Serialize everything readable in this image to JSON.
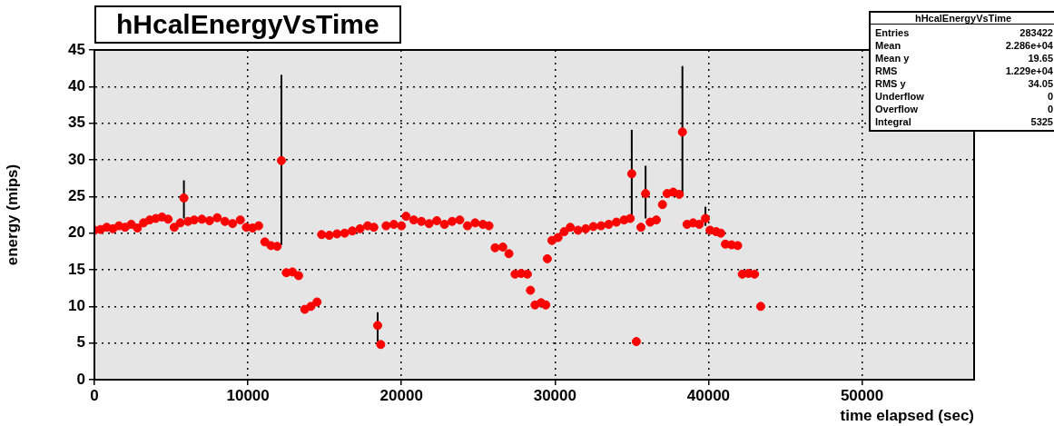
{
  "chart_data": {
    "type": "scatter",
    "title": "hHcalEnergyVsTime",
    "xlabel": "time elapsed (sec)",
    "ylabel": "energy (mips)",
    "annotations": [
      "Entries 283422",
      "Mean 2.286e+04",
      "Mean y 19.65",
      "RMS 1.229e+04",
      "RMS y 34.05",
      "Underflow 0",
      "Overflow 0",
      "Integral 5325"
    ],
    "xlim": [
      0,
      57300
    ],
    "xticks": [
      0,
      10000,
      20000,
      30000,
      40000,
      50000
    ],
    "ylim": [
      0,
      45
    ],
    "yticks": [
      0,
      5,
      10,
      15,
      20,
      25,
      30,
      35,
      40,
      45
    ],
    "grid": true,
    "legend": false,
    "marker": "circle",
    "series": [
      {
        "color": "#ff0000",
        "x": [
          0,
          400,
          800,
          1200,
          1600,
          2000,
          2400,
          2800,
          3200,
          3600,
          4000,
          4400,
          4800,
          5200,
          5600,
          5830,
          6100,
          6500,
          7000,
          7500,
          8000,
          8500,
          9000,
          9500,
          9900,
          10300,
          10700,
          11100,
          11500,
          11900,
          12180,
          12500,
          12900,
          13300,
          13700,
          14100,
          14500,
          14800,
          15300,
          15800,
          16300,
          16800,
          17300,
          17800,
          18200,
          18450,
          18650,
          19000,
          19500,
          20000,
          20300,
          20800,
          21300,
          21800,
          22300,
          22800,
          23300,
          23800,
          24300,
          24800,
          25300,
          25700,
          26100,
          26600,
          27000,
          27400,
          27800,
          28200,
          28400,
          28700,
          29100,
          29400,
          29500,
          29800,
          30200,
          30600,
          31000,
          31500,
          32000,
          32500,
          33000,
          33500,
          34000,
          34500,
          34900,
          35000,
          35300,
          35600,
          35900,
          36200,
          36600,
          37000,
          37300,
          37700,
          38100,
          38300,
          38600,
          39000,
          39400,
          39800,
          40100,
          40500,
          40800,
          41100,
          41500,
          41900,
          42200,
          42600,
          43000,
          43400
        ],
        "values": [
          20.4,
          20.5,
          20.8,
          20.6,
          21.0,
          20.8,
          21.2,
          20.7,
          21.4,
          21.8,
          22.0,
          22.2,
          21.9,
          20.8,
          21.4,
          24.8,
          21.6,
          21.8,
          21.9,
          21.7,
          22.1,
          21.6,
          21.3,
          21.8,
          20.8,
          20.7,
          21.0,
          18.8,
          18.3,
          18.2,
          29.9,
          14.6,
          14.7,
          14.2,
          9.6,
          10.0,
          10.6,
          19.8,
          19.7,
          19.9,
          20.0,
          20.3,
          20.6,
          21.0,
          20.8,
          7.4,
          4.8,
          21.0,
          21.2,
          21.0,
          22.3,
          21.8,
          21.6,
          21.3,
          21.7,
          21.2,
          21.6,
          21.8,
          21.0,
          21.4,
          21.2,
          21.0,
          18.0,
          18.1,
          17.2,
          14.4,
          14.5,
          14.4,
          12.2,
          10.2,
          10.5,
          10.2,
          16.5,
          19.0,
          19.4,
          20.2,
          20.8,
          20.4,
          20.6,
          20.9,
          21.0,
          21.2,
          21.5,
          21.8,
          22.0,
          28.1,
          5.2,
          20.8,
          25.4,
          21.5,
          21.8,
          23.9,
          25.4,
          25.6,
          25.3,
          33.8,
          21.2,
          21.4,
          21.2,
          22.0,
          20.4,
          20.2,
          20.0,
          18.5,
          18.4,
          18.3,
          14.4,
          14.5,
          14.4,
          10.0
        ],
        "errors": [
          null,
          null,
          null,
          null,
          null,
          null,
          null,
          null,
          null,
          null,
          null,
          null,
          null,
          null,
          null,
          [
            22,
            27.2
          ],
          null,
          null,
          null,
          null,
          null,
          null,
          null,
          null,
          null,
          null,
          null,
          null,
          null,
          null,
          [
            18.4,
            41.6
          ],
          null,
          null,
          null,
          null,
          null,
          null,
          null,
          null,
          null,
          null,
          null,
          null,
          null,
          null,
          [
            5.2,
            9.2
          ],
          null,
          null,
          null,
          null,
          null,
          null,
          null,
          null,
          null,
          null,
          null,
          null,
          null,
          null,
          null,
          null,
          null,
          null,
          null,
          null,
          null,
          null,
          null,
          null,
          null,
          null,
          null,
          null,
          null,
          null,
          null,
          null,
          null,
          null,
          null,
          null,
          null,
          null,
          null,
          [
            22.4,
            34.1
          ],
          null,
          null,
          [
            22,
            29.2
          ],
          null,
          null,
          null,
          null,
          null,
          null,
          [
            25.4,
            42.8
          ],
          null,
          null,
          null,
          [
            21,
            23.6
          ],
          null,
          null,
          null,
          null,
          null,
          null,
          null,
          null,
          null,
          null
        ]
      }
    ]
  }
}
